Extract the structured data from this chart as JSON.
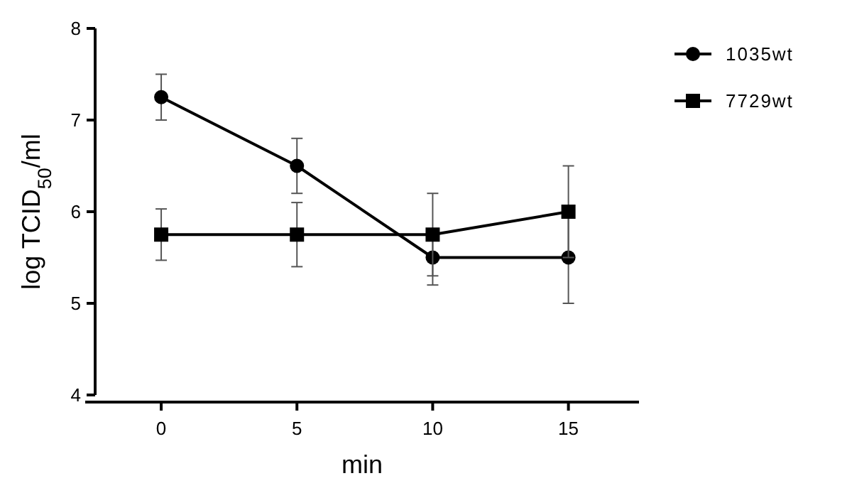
{
  "chart_data": {
    "type": "line",
    "xlabel": "min",
    "ylabel": "log TCID$_{50}$/ml",
    "x": [
      0,
      5,
      10,
      15
    ],
    "xlim": [
      -2.8,
      17.6
    ],
    "xticks": [
      0,
      5,
      10,
      15
    ],
    "ylim": [
      4,
      8
    ],
    "yticks": [
      4,
      5,
      6,
      7,
      8
    ],
    "grid": false,
    "legend": "top right",
    "line_style": "solid",
    "series": [
      {
        "name": "1035wt",
        "color": "#000000",
        "marker": "circle",
        "values": [
          7.25,
          6.5,
          5.5,
          5.5
        ],
        "errors": [
          0.25,
          0.3,
          0.3,
          0.5
        ]
      },
      {
        "name": "7729wt",
        "color": "#000000",
        "marker": "square",
        "values": [
          5.75,
          5.75,
          5.75,
          6.0
        ],
        "errors": [
          0.28,
          0.35,
          0.45,
          0.5
        ]
      }
    ]
  }
}
